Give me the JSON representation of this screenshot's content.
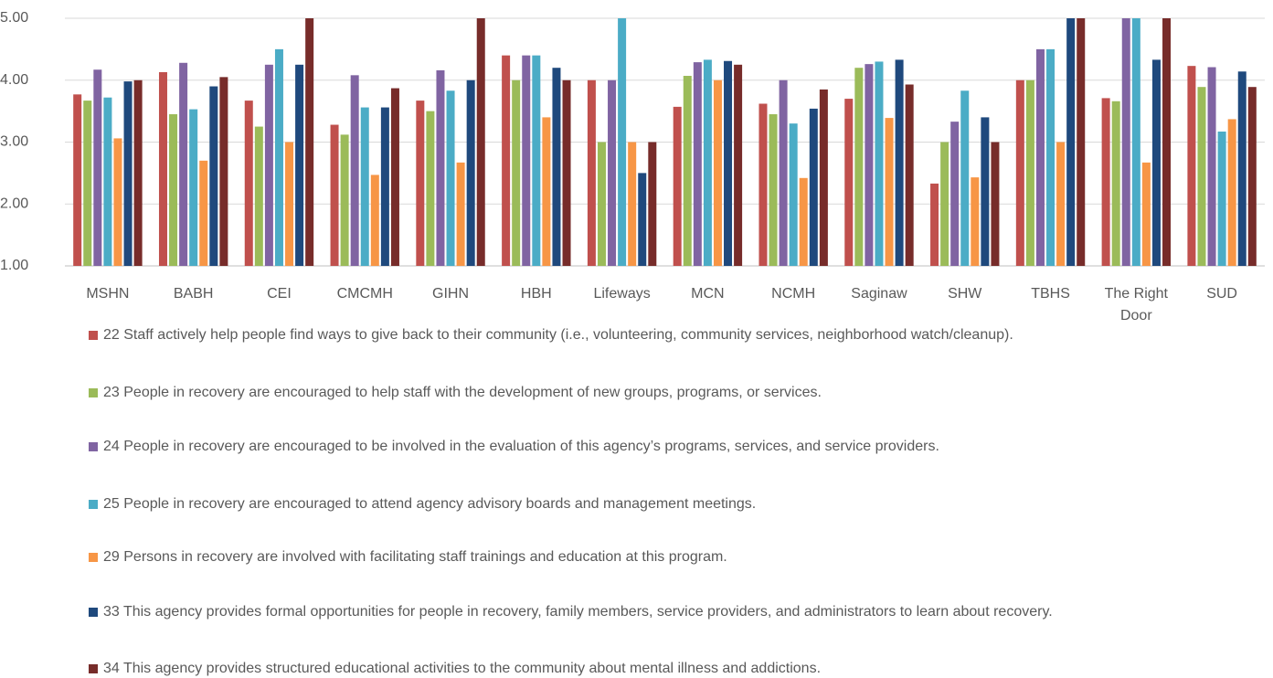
{
  "chart_data": {
    "type": "bar",
    "categories": [
      "MSHN",
      "BABH",
      "CEI",
      "CMCMH",
      "GIHN",
      "HBH",
      "Lifeways",
      "MCN",
      "NCMH",
      "Saginaw",
      "SHW",
      "TBHS",
      "The Right Door",
      "SUD"
    ],
    "series": [
      {
        "name": "22 Staff actively help people find ways to give back to their community (i.e., volunteering, community services, neighborhood watch/cleanup).",
        "color": "#c0504d",
        "values": [
          3.77,
          4.13,
          3.67,
          3.28,
          3.67,
          4.4,
          4.0,
          3.57,
          3.62,
          3.7,
          2.33,
          4.0,
          3.71,
          4.23
        ]
      },
      {
        "name": "23 People in recovery are encouraged to help staff with the development of new groups, programs, or services.",
        "color": "#9bbb59",
        "values": [
          3.67,
          3.45,
          3.25,
          3.12,
          3.5,
          4.0,
          3.0,
          4.07,
          3.45,
          4.2,
          3.0,
          4.0,
          3.66,
          3.89
        ]
      },
      {
        "name": "24 People in recovery are encouraged to be involved in the evaluation of this agency’s programs, services, and service providers.",
        "color": "#8064a2",
        "values": [
          4.17,
          4.28,
          4.25,
          4.08,
          4.16,
          4.4,
          4.0,
          4.29,
          4.0,
          4.26,
          3.33,
          4.5,
          5.0,
          4.21
        ]
      },
      {
        "name": "25 People in recovery are encouraged to attend agency advisory boards and management meetings.",
        "color": "#4bacc6",
        "values": [
          3.72,
          3.53,
          4.5,
          3.56,
          3.83,
          4.4,
          5.0,
          4.33,
          3.3,
          4.3,
          3.83,
          4.5,
          5.0,
          3.17
        ]
      },
      {
        "name": "29 Persons in recovery are involved with facilitating staff trainings and education at this program.",
        "color": "#f79646",
        "values": [
          3.06,
          2.7,
          3.0,
          2.47,
          2.67,
          3.4,
          3.0,
          4.0,
          2.42,
          3.39,
          2.43,
          3.0,
          2.67,
          3.37
        ]
      },
      {
        "name": "33 This agency provides formal opportunities for people in recovery, family members, service providers, and administrators to learn about recovery.",
        "color": "#1f497d",
        "values": [
          3.98,
          3.9,
          4.25,
          3.56,
          4.0,
          4.2,
          2.5,
          4.31,
          3.54,
          4.33,
          3.4,
          5.0,
          4.33,
          4.14
        ]
      },
      {
        "name": "34 This agency provides structured educational activities to the community about mental illness and addictions.",
        "color": "#772c2a",
        "values": [
          4.0,
          4.05,
          5.0,
          3.87,
          5.0,
          4.0,
          3.0,
          4.25,
          3.85,
          3.93,
          3.0,
          5.0,
          5.0,
          3.89
        ]
      }
    ],
    "ylim": [
      1,
      5
    ],
    "yticks": [
      {
        "value": 1,
        "label": "1.00"
      },
      {
        "value": 2,
        "label": "2.00"
      },
      {
        "value": 3,
        "label": "3.00"
      },
      {
        "value": 4,
        "label": "4.00"
      },
      {
        "value": 5,
        "label": "5.00"
      }
    ],
    "grid": true
  }
}
